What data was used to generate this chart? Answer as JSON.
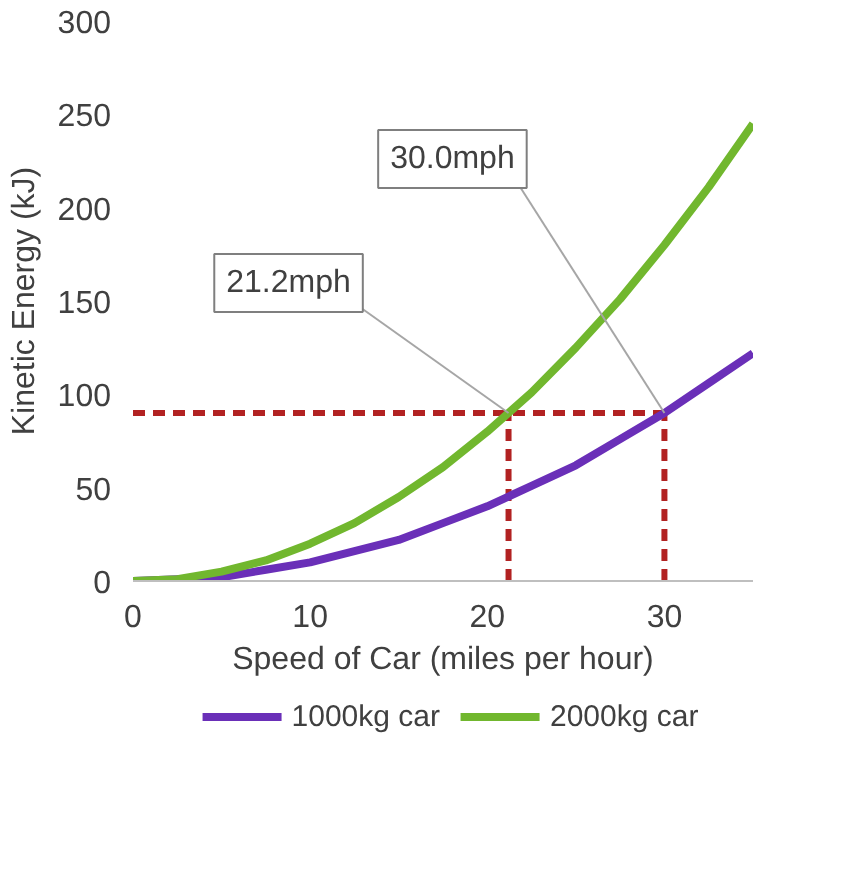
{
  "chart_data": {
    "type": "line",
    "xlabel": "Speed of Car (miles per hour)",
    "ylabel": "Kinetic Energy (kJ)",
    "x": [
      0,
      2.5,
      5,
      7.5,
      10,
      12.5,
      15,
      17.5,
      20,
      22.5,
      25,
      27.5,
      30,
      32.5,
      35
    ],
    "series": [
      {
        "name": "1000kg car",
        "color": "#6a2fb8",
        "values": [
          0,
          1,
          2,
          6,
          10,
          16,
          22,
          31,
          40,
          51,
          62,
          76,
          90,
          106,
          122
        ]
      },
      {
        "name": "2000kg car",
        "color": "#71b72e",
        "values": [
          0,
          1,
          5,
          11,
          20,
          31,
          45,
          61,
          80,
          101,
          125,
          151,
          180,
          211,
          245
        ]
      }
    ],
    "xlim": [
      0,
      35
    ],
    "ylim": [
      0,
      300
    ],
    "xticks": [
      0,
      10,
      20,
      30
    ],
    "yticks": [
      0,
      50,
      100,
      150,
      200,
      250,
      300
    ],
    "ref_lines": [
      {
        "axis": "y",
        "value": 90,
        "color": "#b22222",
        "line_style": "dashed"
      },
      {
        "axis": "x",
        "value": 21.2,
        "color": "#b22222",
        "line_style": "dashed"
      },
      {
        "axis": "x",
        "value": 30,
        "color": "#b22222",
        "line_style": "dashed"
      }
    ],
    "annotations": [
      {
        "text": "21.2mph",
        "x": 21.2,
        "y": 90
      },
      {
        "text": "30.0mph",
        "x": 30,
        "y": 90
      }
    ],
    "grid": false,
    "legend": "bottom",
    "line_style": "solid",
    "marker": "none"
  }
}
